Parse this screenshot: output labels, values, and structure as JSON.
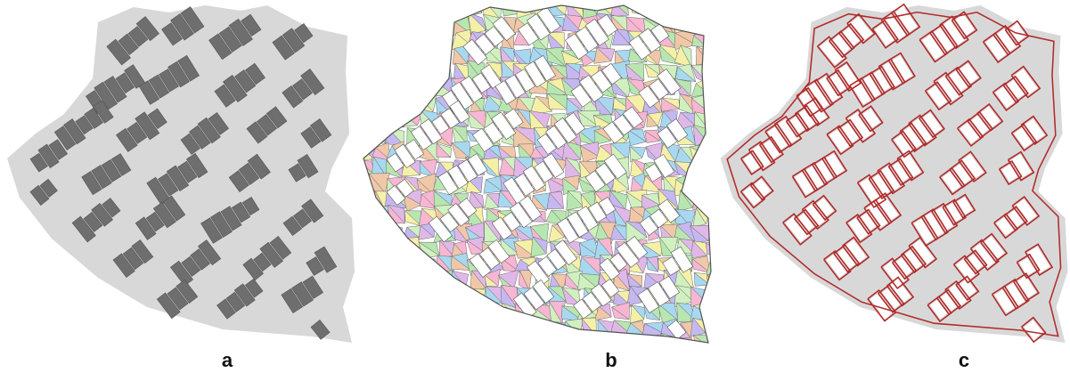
{
  "panels": [
    {
      "label": "a"
    },
    {
      "label": "b"
    },
    {
      "label": "c"
    }
  ],
  "colors": {
    "parcel": "#d8d8d8",
    "building": "#6e6e6e",
    "building_edge": "#555555",
    "triangle_edge": "#6a6a6a",
    "skeleton": "#b22a2a",
    "triangle_fills": [
      "#f7b6d2",
      "#b8e6b0",
      "#c5b8f0",
      "#f5f0a8",
      "#a8d8f0",
      "#f0c8a8",
      "#d0f0c0",
      "#e0b8e8"
    ]
  }
}
